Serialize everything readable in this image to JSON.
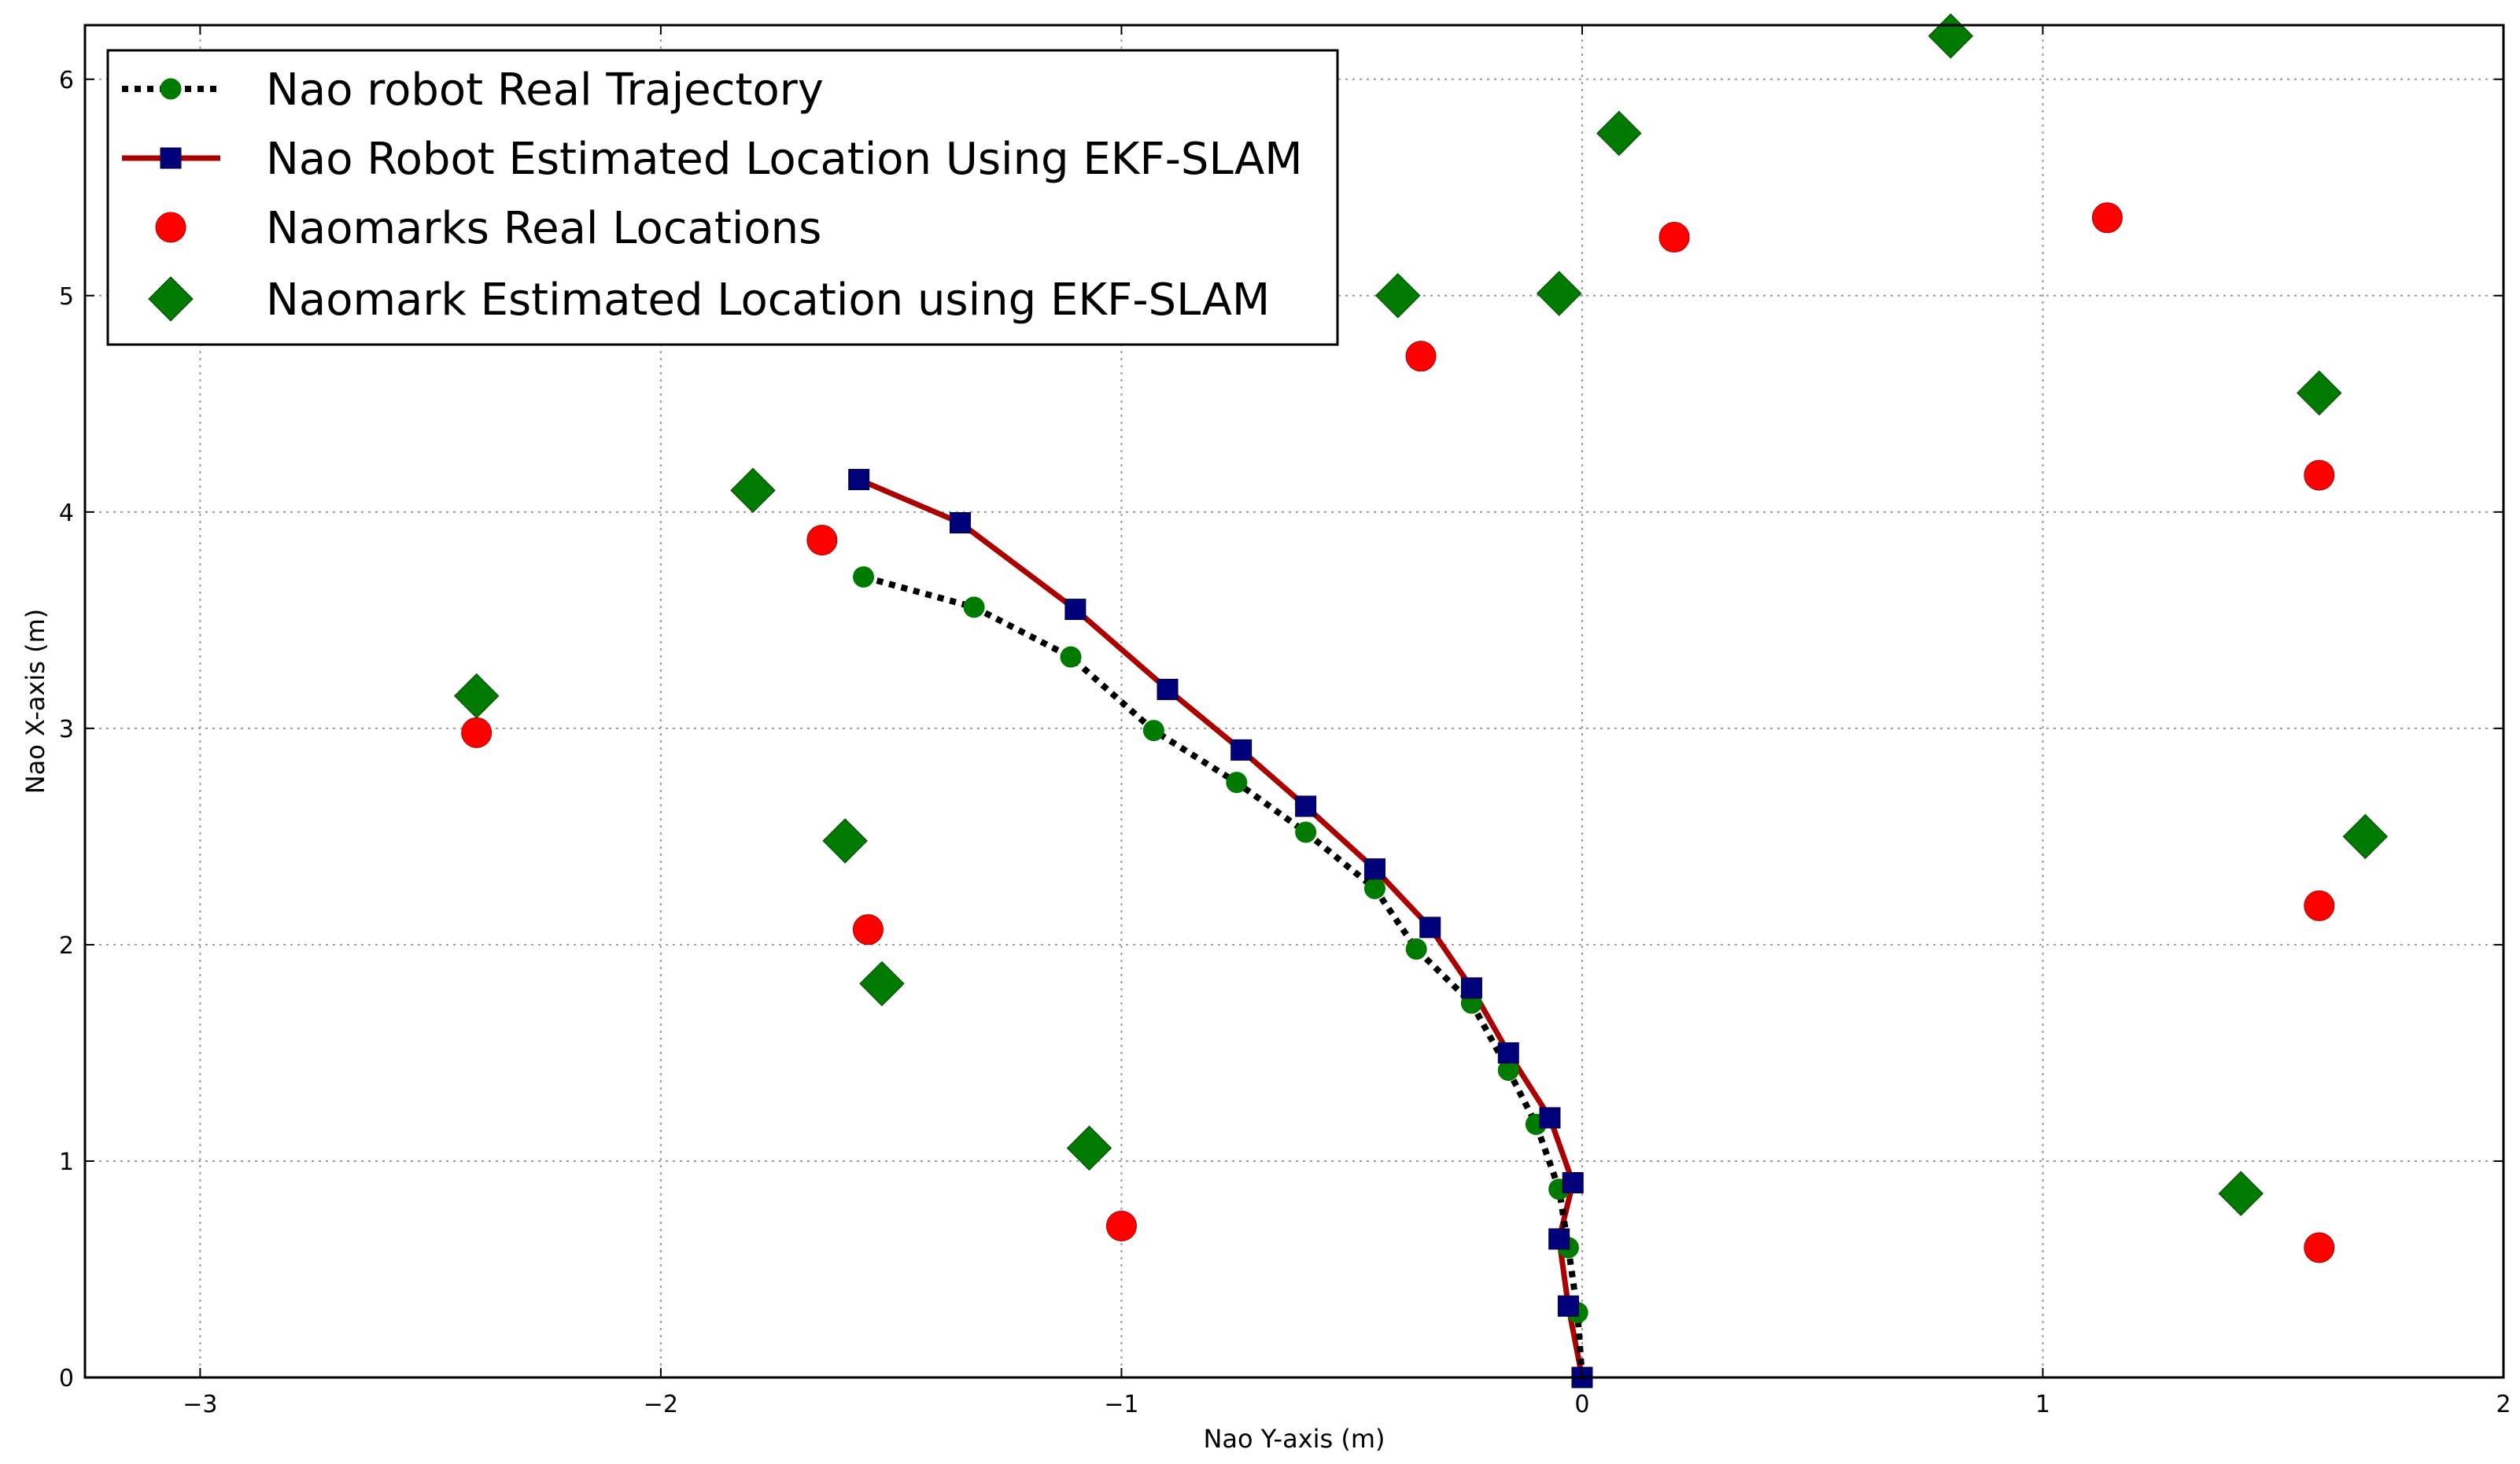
{
  "chart_data": {
    "type": "scatter",
    "title": "",
    "xlabel": "Nao Y-axis (m)",
    "ylabel": "Nao X-axis (m)",
    "xlim": [
      -3.25,
      2.0
    ],
    "ylim": [
      0,
      6.25
    ],
    "xticks": [
      -3,
      -2,
      -1,
      0,
      1,
      2
    ],
    "yticks": [
      0,
      1,
      2,
      3,
      4,
      5,
      6
    ],
    "xtick_labels": [
      "−3",
      "−2",
      "−1",
      "0",
      "1",
      "2"
    ],
    "ytick_labels": [
      "0",
      "1",
      "2",
      "3",
      "4",
      "5",
      "6"
    ],
    "grid": true,
    "legend_position": "top-left",
    "series": [
      {
        "name": "Nao robot Real Trajectory",
        "style": "dotted-line-circle",
        "line_color": "#000000",
        "marker_color": "#007a00",
        "x": [
          0.0,
          -0.01,
          -0.03,
          -0.05,
          -0.1,
          -0.16,
          -0.24,
          -0.36,
          -0.45,
          -0.6,
          -0.75,
          -0.93,
          -1.11,
          -1.32,
          -1.56
        ],
        "y": [
          0.0,
          0.3,
          0.6,
          0.87,
          1.17,
          1.42,
          1.73,
          1.98,
          2.26,
          2.52,
          2.75,
          2.99,
          3.33,
          3.56,
          3.7
        ]
      },
      {
        "name": "Nao Robot Estimated Location Using EKF-SLAM",
        "style": "solid-line-square",
        "line_color": "#aa0000",
        "marker_color": "#00007a",
        "x": [
          0.0,
          -0.03,
          -0.05,
          -0.02,
          -0.07,
          -0.16,
          -0.24,
          -0.33,
          -0.45,
          -0.6,
          -0.74,
          -0.9,
          -1.1,
          -1.35,
          -1.57
        ],
        "y": [
          0.0,
          0.33,
          0.64,
          0.9,
          1.2,
          1.5,
          1.8,
          2.08,
          2.35,
          2.64,
          2.9,
          3.18,
          3.55,
          3.95,
          4.15
        ]
      },
      {
        "name": "Naomarks Real Locations",
        "style": "marker-circle",
        "marker_color": "#ff0000",
        "x": [
          -2.4,
          -1.65,
          -1.55,
          -1.0,
          -0.35,
          0.2,
          1.14,
          1.6,
          1.6,
          1.6
        ],
        "y": [
          2.98,
          3.87,
          2.07,
          0.7,
          4.72,
          5.27,
          5.36,
          4.17,
          2.18,
          0.6
        ]
      },
      {
        "name": "Naomark Estimated Location using EKF-SLAM",
        "style": "marker-diamond",
        "marker_color": "#007a00",
        "x": [
          -2.4,
          -1.8,
          -1.6,
          -1.52,
          -1.07,
          -0.4,
          -0.05,
          0.08,
          0.8,
          1.6,
          1.7,
          1.43
        ],
        "y": [
          3.15,
          4.1,
          2.48,
          1.82,
          1.06,
          5.0,
          5.01,
          5.75,
          6.2,
          4.55,
          2.5,
          0.85
        ]
      }
    ]
  }
}
